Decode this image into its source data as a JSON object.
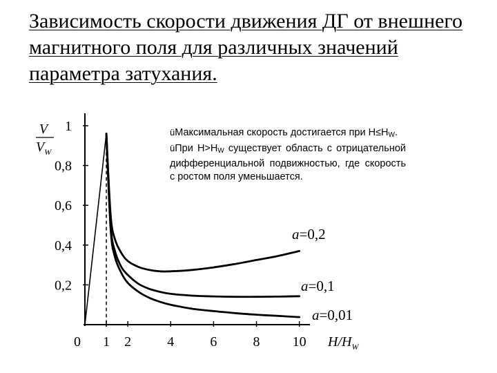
{
  "slide": {
    "title": "Зависимость скорости движения ДГ от внешнего магнитного поля для различных значений параметра затухания."
  },
  "notes": {
    "check_glyph": "ü",
    "bullets": [
      {
        "pre": "Максимальная скорость достигается при H≤H",
        "sub": "W",
        "post": "."
      },
      {
        "pre": "При H>H",
        "sub": "W",
        "post": " существует область с отрицательной дифференциальной подвижностью, где скорость с ростом поля уменьшается."
      }
    ]
  },
  "chart_data": {
    "type": "line",
    "ylabel_num": "V",
    "ylabel_den": "V",
    "ylabel_den_sub": "W",
    "xlabel": "H/H",
    "xlabel_sub": "W",
    "x_ticks": [
      "0",
      "1",
      "2",
      "4",
      "6",
      "8",
      "10"
    ],
    "x_tick_values": [
      0,
      1,
      2,
      4,
      6,
      8,
      10
    ],
    "y_ticks": [
      "0,2",
      "0,4",
      "0,6",
      "0,8",
      "1"
    ],
    "y_tick_values": [
      0.2,
      0.4,
      0.6,
      0.8,
      1.0
    ],
    "xlim": [
      0,
      10.3
    ],
    "ylim": [
      0,
      1.0
    ],
    "peak": {
      "x": 1.0,
      "y": 0.96
    },
    "series": [
      {
        "name": "a=0,2",
        "label_prefix": "a",
        "label_value": "=0,2",
        "x": [
          1.0,
          1.2,
          1.4,
          1.7,
          2.0,
          2.5,
          3.0,
          3.5,
          4.0,
          5.0,
          6.0,
          7.0,
          8.0,
          9.0,
          10.0
        ],
        "y": [
          0.96,
          0.55,
          0.43,
          0.36,
          0.32,
          0.29,
          0.275,
          0.268,
          0.268,
          0.275,
          0.288,
          0.305,
          0.325,
          0.345,
          0.37
        ]
      },
      {
        "name": "a=0,1",
        "label_prefix": "a",
        "label_value": "=0,1",
        "x": [
          1.0,
          1.2,
          1.4,
          1.7,
          2.0,
          2.5,
          3.0,
          3.5,
          4.0,
          5.0,
          6.0,
          7.0,
          8.0,
          9.0,
          10.0
        ],
        "y": [
          0.96,
          0.5,
          0.37,
          0.29,
          0.25,
          0.205,
          0.18,
          0.165,
          0.155,
          0.146,
          0.142,
          0.14,
          0.14,
          0.141,
          0.143
        ]
      },
      {
        "name": "a=0,01",
        "label_prefix": "a",
        "label_value": "=0,01",
        "x": [
          1.0,
          1.2,
          1.4,
          1.7,
          2.0,
          2.5,
          3.0,
          3.5,
          4.0,
          5.0,
          6.0,
          7.0,
          8.0,
          9.0,
          10.0
        ],
        "y": [
          0.96,
          0.48,
          0.34,
          0.26,
          0.21,
          0.165,
          0.135,
          0.115,
          0.1,
          0.08,
          0.068,
          0.058,
          0.05,
          0.044,
          0.038
        ]
      }
    ],
    "grid": false,
    "legend": "inline curve labels"
  }
}
